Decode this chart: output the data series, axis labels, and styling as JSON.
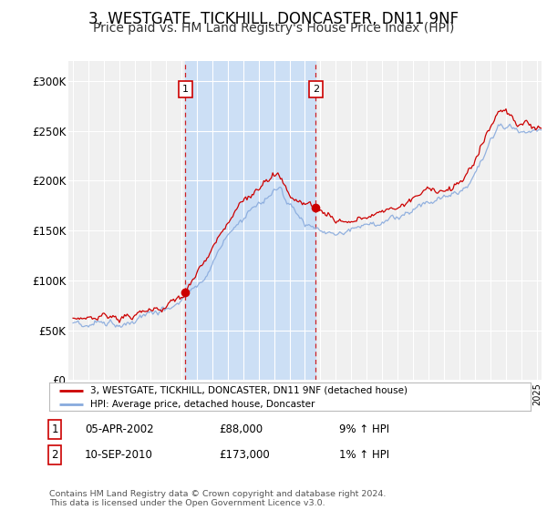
{
  "title": "3, WESTGATE, TICKHILL, DONCASTER, DN11 9NF",
  "subtitle": "Price paid vs. HM Land Registry's House Price Index (HPI)",
  "title_fontsize": 12,
  "subtitle_fontsize": 10,
  "background_color": "#ffffff",
  "plot_bg_color": "#e8e8e8",
  "grid_color": "#ffffff",
  "hpi_color": "#88aadd",
  "price_color": "#cc0000",
  "span_color": "#ddeeff",
  "sale1": {
    "date_num": 2002.27,
    "price": 88000,
    "label": "1"
  },
  "sale2": {
    "date_num": 2010.69,
    "price": 173000,
    "label": "2"
  },
  "ylim": [
    0,
    320000
  ],
  "yticks": [
    0,
    50000,
    100000,
    150000,
    200000,
    250000,
    300000
  ],
  "ytick_labels": [
    "£0",
    "£50K",
    "£100K",
    "£150K",
    "£200K",
    "£250K",
    "£300K"
  ],
  "xlim_start": 1994.7,
  "xlim_end": 2025.3,
  "legend_line1": "3, WESTGATE, TICKHILL, DONCASTER, DN11 9NF (detached house)",
  "legend_line2": "HPI: Average price, detached house, Doncaster",
  "table_rows": [
    {
      "num": "1",
      "date": "05-APR-2002",
      "price": "£88,000",
      "change": "9% ↑ HPI"
    },
    {
      "num": "2",
      "date": "10-SEP-2010",
      "price": "£173,000",
      "change": "1% ↑ HPI"
    }
  ],
  "footnote": "Contains HM Land Registry data © Crown copyright and database right 2024.\nThis data is licensed under the Open Government Licence v3.0."
}
